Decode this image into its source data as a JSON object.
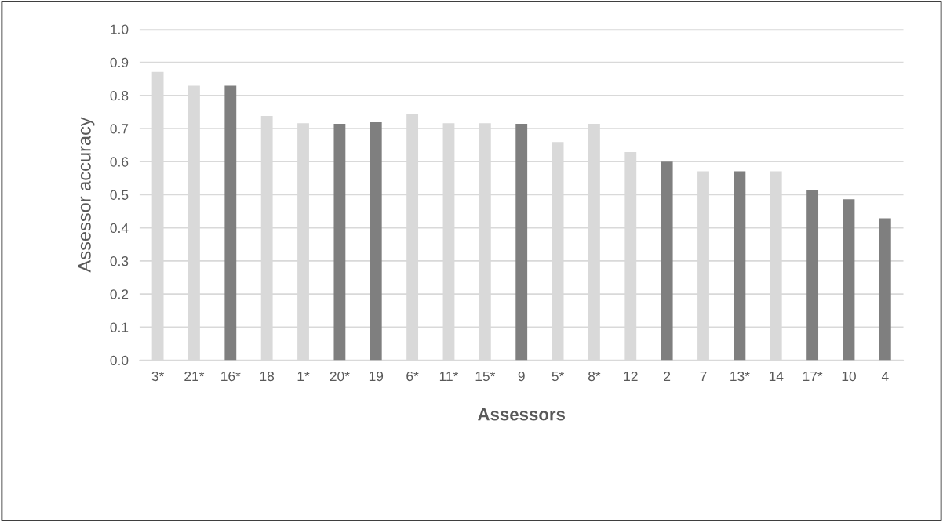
{
  "chart_data": {
    "type": "bar",
    "xlabel": "Assessors",
    "ylabel": "Assessor accuracy",
    "categories": [
      "3*",
      "21*",
      "16*",
      "18",
      "1*",
      "20*",
      "19",
      "6*",
      "11*",
      "15*",
      "9",
      "5*",
      "8*",
      "12",
      "2",
      "7",
      "13*",
      "14",
      "17*",
      "10",
      "4"
    ],
    "values": [
      0.871,
      0.829,
      0.829,
      0.738,
      0.716,
      0.714,
      0.719,
      0.743,
      0.716,
      0.716,
      0.714,
      0.659,
      0.714,
      0.629,
      0.6,
      0.571,
      0.571,
      0.571,
      0.514,
      0.486,
      0.429
    ],
    "colors": [
      "#d9d9d9",
      "#d9d9d9",
      "#7f7f7f",
      "#d9d9d9",
      "#d9d9d9",
      "#7f7f7f",
      "#7f7f7f",
      "#d9d9d9",
      "#d9d9d9",
      "#d9d9d9",
      "#7f7f7f",
      "#d9d9d9",
      "#d9d9d9",
      "#d9d9d9",
      "#7f7f7f",
      "#d9d9d9",
      "#7f7f7f",
      "#d9d9d9",
      "#7f7f7f",
      "#7f7f7f",
      "#7f7f7f"
    ],
    "ylim": [
      0,
      1.0
    ],
    "yticks": [
      {
        "value": 0,
        "label": "0.0"
      },
      {
        "value": 0.1,
        "label": "0.1"
      },
      {
        "value": 0.2,
        "label": "0.2"
      },
      {
        "value": 0.3,
        "label": "0.3"
      },
      {
        "value": 0.4,
        "label": "0.4"
      },
      {
        "value": 0.5,
        "label": "0.5"
      },
      {
        "value": 0.6,
        "label": "0.6"
      },
      {
        "value": 0.7,
        "label": "0.7"
      },
      {
        "value": 0.8,
        "label": "0.8"
      },
      {
        "value": 0.9,
        "label": "0.9"
      },
      {
        "value": 1.0,
        "label": "1.0"
      }
    ],
    "grid": "y",
    "legend": false
  }
}
